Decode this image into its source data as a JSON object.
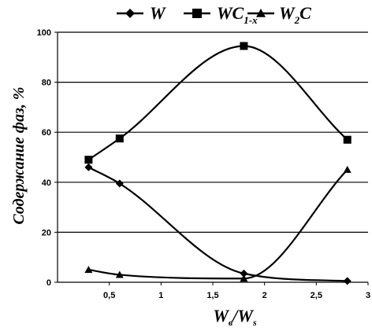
{
  "chart_data": {
    "type": "line",
    "xlim": [
      0,
      3
    ],
    "ylim": [
      0,
      100
    ],
    "x_ticks": [
      {
        "v": 0.5,
        "label": "0,5"
      },
      {
        "v": 1,
        "label": "1"
      },
      {
        "v": 1.5,
        "label": "1,5"
      },
      {
        "v": 2,
        "label": "2"
      },
      {
        "v": 2.5,
        "label": "2,5"
      },
      {
        "v": 3,
        "label": "3"
      }
    ],
    "y_ticks": [
      {
        "v": 0,
        "label": "0"
      },
      {
        "v": 20,
        "label": "20"
      },
      {
        "v": 40,
        "label": "40"
      },
      {
        "v": 60,
        "label": "60"
      },
      {
        "v": 80,
        "label": "80"
      },
      {
        "v": 100,
        "label": "100"
      }
    ],
    "grid": "horizontal",
    "legend_position": "top",
    "ylabel": "Содержание фаз, %",
    "xlabel": {
      "main_1": "W",
      "sub_1": "в",
      "slash": "/",
      "main_2": "W",
      "sub_2": "s"
    },
    "series": [
      {
        "key": "W",
        "label": {
          "main": "W",
          "sub": "",
          "tail": ""
        },
        "marker": "diamond",
        "color": "#000000",
        "x": [
          0.3,
          0.6,
          1.8,
          2.8
        ],
        "y": [
          46,
          39.5,
          3.5,
          0.5
        ]
      },
      {
        "key": "WC",
        "label": {
          "main": "WC",
          "sub": "1-x",
          "tail": ""
        },
        "marker": "square",
        "color": "#000000",
        "x": [
          0.3,
          0.6,
          1.8,
          2.8
        ],
        "y": [
          49,
          57.5,
          94.5,
          57
        ]
      },
      {
        "key": "W2C",
        "label": {
          "main": "W",
          "sub": "2",
          "tail": "C"
        },
        "marker": "triangle",
        "color": "#000000",
        "x": [
          0.3,
          0.6,
          1.8,
          2.8
        ],
        "y": [
          5,
          3,
          1.5,
          45
        ]
      }
    ]
  }
}
